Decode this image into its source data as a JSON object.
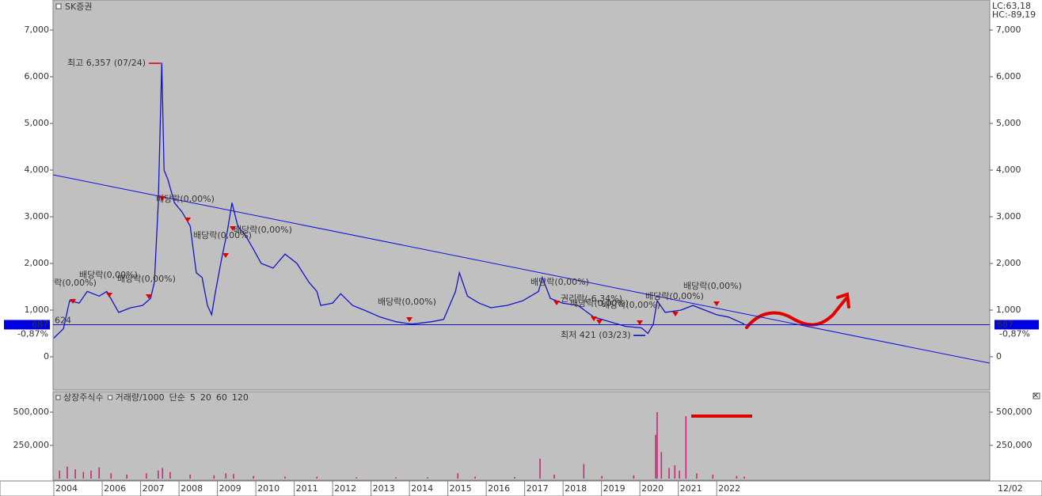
{
  "chart_data": [
    {
      "type": "line",
      "title": "SK증권",
      "color": "#1414c8",
      "indicators": [
        "LC:63,18",
        "HC:-89,19"
      ],
      "indicator_colors": [
        "#d00000",
        "#000080"
      ],
      "x": [
        2004.74,
        2004.99,
        2005.15,
        2005.4,
        2005.61,
        2005.92,
        2006.12,
        2006.43,
        2006.74,
        2007.05,
        2007.26,
        2007.36,
        2007.46,
        2007.55,
        2007.61,
        2007.71,
        2007.88,
        2008.08,
        2008.29,
        2008.45,
        2008.6,
        2008.74,
        2008.85,
        2008.95,
        2009.11,
        2009.26,
        2009.38,
        2009.53,
        2009.73,
        2009.94,
        2010.14,
        2010.45,
        2010.76,
        2011.07,
        2011.38,
        2011.59,
        2011.69,
        2012.0,
        2012.21,
        2012.52,
        2012.82,
        2013.24,
        2013.65,
        2014.06,
        2014.58,
        2014.89,
        2015.2,
        2015.3,
        2015.51,
        2015.81,
        2016.12,
        2016.54,
        2016.95,
        2017.36,
        2017.46,
        2017.67,
        2017.98,
        2018.39,
        2018.8,
        2019.22,
        2019.63,
        2020.04,
        2020.21,
        2020.35,
        2020.45,
        2020.66,
        2021.07,
        2021.38,
        2021.69,
        2022.0,
        2022.31,
        2022.72
      ],
      "values": [
        400,
        600,
        1200,
        1150,
        1400,
        1300,
        1400,
        950,
        1050,
        1100,
        1250,
        1600,
        3300,
        6300,
        4000,
        3800,
        3300,
        3100,
        2800,
        1800,
        1700,
        1100,
        900,
        1400,
        2100,
        2700,
        3300,
        2800,
        2600,
        2300,
        2000,
        1900,
        2200,
        2000,
        1600,
        1400,
        1100,
        1150,
        1350,
        1100,
        1000,
        850,
        750,
        700,
        750,
        800,
        1400,
        1800,
        1300,
        1150,
        1050,
        1100,
        1200,
        1400,
        1700,
        1250,
        1150,
        1100,
        850,
        750,
        650,
        620,
        500,
        700,
        1200,
        950,
        1000,
        1100,
        1000,
        900,
        850,
        700
      ],
      "xlim": [
        2004.72,
        2029.11
      ],
      "xticks": [
        {
          "value": 2004.74,
          "label": "2004"
        },
        2006,
        2007,
        2008,
        2009,
        2010,
        2011,
        2012,
        2013,
        2014,
        2015,
        2016,
        2017,
        2018,
        2019,
        2020,
        2021,
        2022
      ],
      "date_label": "12/02",
      "ylim": [
        -712,
        7644
      ],
      "yticks": [
        0,
        {
          "value": 1000,
          "label": "1,000"
        },
        {
          "value": 2000,
          "label": "2,000"
        },
        {
          "value": 3000,
          "label": "3,000"
        },
        {
          "value": 4000,
          "label": "4,000"
        },
        {
          "value": 5000,
          "label": "5,000"
        },
        {
          "value": 6000,
          "label": "6,000"
        },
        {
          "value": 7000,
          "label": "7,000"
        }
      ],
      "trendline": {
        "x": [
          2004.72,
          2029.11
        ],
        "values": [
          3898,
          -136
        ]
      },
      "last_price": 687,
      "change": "-0,87%",
      "start_price": 624,
      "high_label": "최고 6,357 (07/24)",
      "low_label": "최저 421 (03/23)",
      "annotations": [
        "배당락(0,00%)",
        "배당락(0,00%)",
        "배당락(0,00%)",
        "배당락(0,00%)",
        "배당락(0,00%)",
        "배당락(0,00%)",
        "배당락(0,00%)",
        "배당락(0,00%)",
        "권리락(-6,34%)",
        "배당락(0,00%)",
        "배당락(0,00%)",
        "배당락(0,00%)",
        "배당락(0,00%)"
      ]
    },
    {
      "type": "bar",
      "color": "#c8287a",
      "legend": [
        "상장주식수",
        "거래량/1000",
        "단순",
        "5",
        "20",
        "60",
        "120"
      ],
      "legend_colors": [
        "#e02020",
        "#209a9a",
        "#d020c0",
        "#d020c0",
        "#e0b000",
        "#109010",
        "#808080"
      ],
      "x": [
        2004.89,
        2005.09,
        2005.3,
        2005.51,
        2005.71,
        2005.92,
        2006.23,
        2006.64,
        2007.15,
        2007.46,
        2007.57,
        2007.77,
        2008.29,
        2008.91,
        2009.22,
        2009.42,
        2009.94,
        2010.76,
        2011.59,
        2012.62,
        2013.65,
        2014.47,
        2015.26,
        2015.71,
        2016.74,
        2017.4,
        2017.77,
        2018.54,
        2019.01,
        2019.84,
        2020.41,
        2020.45,
        2020.56,
        2020.76,
        2020.91,
        2021.03,
        2021.2,
        2021.48,
        2021.9,
        2022.52,
        2022.72
      ],
      "values": [
        60000,
        90000,
        70000,
        50000,
        60000,
        85000,
        40000,
        30000,
        40000,
        60000,
        80000,
        50000,
        30000,
        25000,
        40000,
        35000,
        20000,
        15000,
        15000,
        10000,
        10000,
        10000,
        40000,
        15000,
        12000,
        150000,
        30000,
        110000,
        20000,
        25000,
        330000,
        500000,
        200000,
        80000,
        100000,
        60000,
        470000,
        40000,
        30000,
        20000,
        15000
      ],
      "ylim": [
        0,
        655000
      ],
      "yticks": [
        {
          "value": 250000,
          "label": "250,000"
        },
        {
          "value": 500000,
          "label": "500,000"
        }
      ]
    }
  ]
}
